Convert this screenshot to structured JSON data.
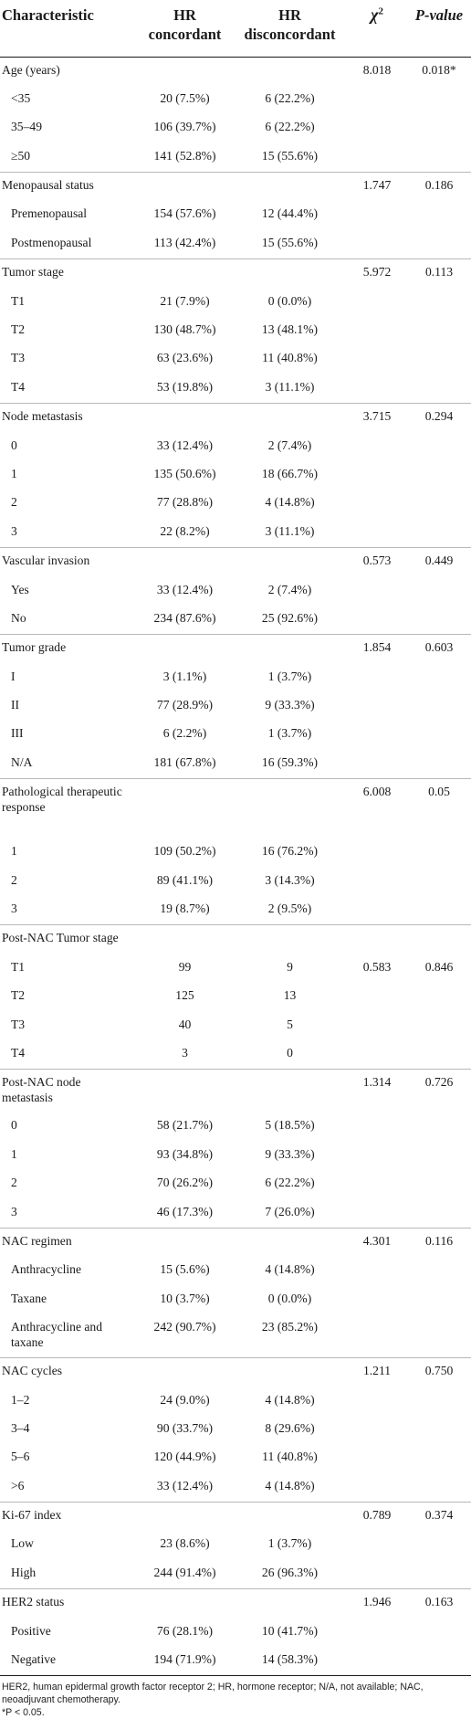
{
  "header": {
    "characteristic": "Characteristic",
    "hr_concordant": "HR concordant",
    "hr_disconcordant": "HR disconcordant",
    "chi_symbol": "χ",
    "chi_exp": "2",
    "p_value": "P-value"
  },
  "rows": [
    {
      "type": "group",
      "char": "Age (years)",
      "hrc": "",
      "hrd": "",
      "chi": "8.018",
      "p": "0.018*"
    },
    {
      "type": "sub",
      "char": "<35",
      "hrc": "20 (7.5%)",
      "hrd": "6 (22.2%)",
      "chi": "",
      "p": ""
    },
    {
      "type": "sub",
      "char": "35–49",
      "hrc": "106 (39.7%)",
      "hrd": "6 (22.2%)",
      "chi": "",
      "p": ""
    },
    {
      "type": "sub",
      "char": "≥50",
      "hrc": "141 (52.8%)",
      "hrd": "15 (55.6%)",
      "chi": "",
      "p": ""
    },
    {
      "type": "group",
      "char": "Menopausal status",
      "hrc": "",
      "hrd": "",
      "chi": "1.747",
      "p": "0.186"
    },
    {
      "type": "sub",
      "char": "Premenopausal",
      "hrc": "154 (57.6%)",
      "hrd": "12 (44.4%)",
      "chi": "",
      "p": ""
    },
    {
      "type": "sub",
      "char": "Postmenopausal",
      "hrc": "113 (42.4%)",
      "hrd": "15 (55.6%)",
      "chi": "",
      "p": ""
    },
    {
      "type": "group",
      "char": "Tumor stage",
      "hrc": "",
      "hrd": "",
      "chi": "5.972",
      "p": "0.113"
    },
    {
      "type": "sub",
      "char": "T1",
      "hrc": "21 (7.9%)",
      "hrd": "0 (0.0%)",
      "chi": "",
      "p": ""
    },
    {
      "type": "sub",
      "char": "T2",
      "hrc": "130 (48.7%)",
      "hrd": "13 (48.1%)",
      "chi": "",
      "p": ""
    },
    {
      "type": "sub",
      "char": "T3",
      "hrc": "63 (23.6%)",
      "hrd": "11 (40.8%)",
      "chi": "",
      "p": ""
    },
    {
      "type": "sub",
      "char": "T4",
      "hrc": "53 (19.8%)",
      "hrd": "3 (11.1%)",
      "chi": "",
      "p": ""
    },
    {
      "type": "group",
      "char": "Node metastasis",
      "hrc": "",
      "hrd": "",
      "chi": "3.715",
      "p": "0.294"
    },
    {
      "type": "sub",
      "char": "0",
      "hrc": "33 (12.4%)",
      "hrd": "2 (7.4%)",
      "chi": "",
      "p": ""
    },
    {
      "type": "sub",
      "char": "1",
      "hrc": "135 (50.6%)",
      "hrd": "18 (66.7%)",
      "chi": "",
      "p": ""
    },
    {
      "type": "sub",
      "char": "2",
      "hrc": "77 (28.8%)",
      "hrd": "4 (14.8%)",
      "chi": "",
      "p": ""
    },
    {
      "type": "sub",
      "char": "3",
      "hrc": "22 (8.2%)",
      "hrd": "3 (11.1%)",
      "chi": "",
      "p": ""
    },
    {
      "type": "group",
      "char": "Vascular invasion",
      "hrc": "",
      "hrd": "",
      "chi": "0.573",
      "p": "0.449"
    },
    {
      "type": "sub",
      "char": "Yes",
      "hrc": "33 (12.4%)",
      "hrd": "2 (7.4%)",
      "chi": "",
      "p": ""
    },
    {
      "type": "sub",
      "char": "No",
      "hrc": "234 (87.6%)",
      "hrd": "25 (92.6%)",
      "chi": "",
      "p": ""
    },
    {
      "type": "group",
      "char": "Tumor grade",
      "hrc": "",
      "hrd": "",
      "chi": "1.854",
      "p": "0.603"
    },
    {
      "type": "sub",
      "char": "I",
      "hrc": "3 (1.1%)",
      "hrd": "1 (3.7%)",
      "chi": "",
      "p": ""
    },
    {
      "type": "sub",
      "char": "II",
      "hrc": "77 (28.9%)",
      "hrd": "9 (33.3%)",
      "chi": "",
      "p": ""
    },
    {
      "type": "sub",
      "char": "III",
      "hrc": "6 (2.2%)",
      "hrd": "1 (3.7%)",
      "chi": "",
      "p": ""
    },
    {
      "type": "sub",
      "char": "N/A",
      "hrc": "181 (67.8%)",
      "hrd": "16 (59.3%)",
      "chi": "",
      "p": ""
    },
    {
      "type": "group",
      "tall": "tall3",
      "char": "Pathological therapeutic response",
      "hrc": "",
      "hrd": "",
      "chi": "6.008",
      "p": "0.05"
    },
    {
      "type": "sub",
      "char": "1",
      "hrc": "109 (50.2%)",
      "hrd": "16 (76.2%)",
      "chi": "",
      "p": ""
    },
    {
      "type": "sub",
      "char": "2",
      "hrc": "89 (41.1%)",
      "hrd": "3 (14.3%)",
      "chi": "",
      "p": ""
    },
    {
      "type": "sub",
      "char": "3",
      "hrc": "19 (8.7%)",
      "hrd": "2 (9.5%)",
      "chi": "",
      "p": ""
    },
    {
      "type": "group",
      "char": "Post-NAC Tumor stage",
      "hrc": "",
      "hrd": "",
      "chi": "",
      "p": ""
    },
    {
      "type": "sub",
      "char": "T1",
      "hrc": "99",
      "hrd": "9",
      "chi": "0.583",
      "p": "0.846"
    },
    {
      "type": "sub",
      "char": "T2",
      "hrc": "125",
      "hrd": "13",
      "chi": "",
      "p": ""
    },
    {
      "type": "sub",
      "char": "T3",
      "hrc": "40",
      "hrd": "5",
      "chi": "",
      "p": ""
    },
    {
      "type": "sub",
      "char": "T4",
      "hrc": "3",
      "hrd": "0",
      "chi": "",
      "p": ""
    },
    {
      "type": "group",
      "tall": "tall2",
      "char": "Post-NAC node metastasis",
      "hrc": "",
      "hrd": "",
      "chi": "1.314",
      "p": "0.726"
    },
    {
      "type": "sub",
      "char": "0",
      "hrc": "58 (21.7%)",
      "hrd": "5 (18.5%)",
      "chi": "",
      "p": ""
    },
    {
      "type": "sub",
      "char": "1",
      "hrc": "93 (34.8%)",
      "hrd": "9 (33.3%)",
      "chi": "",
      "p": ""
    },
    {
      "type": "sub",
      "char": "2",
      "hrc": "70 (26.2%)",
      "hrd": "6 (22.2%)",
      "chi": "",
      "p": ""
    },
    {
      "type": "sub",
      "char": "3",
      "hrc": "46 (17.3%)",
      "hrd": "7 (26.0%)",
      "chi": "",
      "p": ""
    },
    {
      "type": "group",
      "char": "NAC regimen",
      "hrc": "",
      "hrd": "",
      "chi": "4.301",
      "p": "0.116"
    },
    {
      "type": "sub",
      "char": "Anthracycline",
      "hrc": "15 (5.6%)",
      "hrd": "4 (14.8%)",
      "chi": "",
      "p": ""
    },
    {
      "type": "sub",
      "char": "Taxane",
      "hrc": "10 (3.7%)",
      "hrd": "0 (0.0%)",
      "chi": "",
      "p": ""
    },
    {
      "type": "sub",
      "tall": "tall2",
      "char": "Anthracycline and taxane",
      "hrc": "242 (90.7%)",
      "hrd": "23 (85.2%)",
      "chi": "",
      "p": ""
    },
    {
      "type": "group",
      "char": "NAC cycles",
      "hrc": "",
      "hrd": "",
      "chi": "1.211",
      "p": "0.750"
    },
    {
      "type": "sub",
      "char": "1–2",
      "hrc": "24 (9.0%)",
      "hrd": "4 (14.8%)",
      "chi": "",
      "p": ""
    },
    {
      "type": "sub",
      "char": "3–4",
      "hrc": "90 (33.7%)",
      "hrd": "8 (29.6%)",
      "chi": "",
      "p": ""
    },
    {
      "type": "sub",
      "char": "5–6",
      "hrc": "120 (44.9%)",
      "hrd": "11 (40.8%)",
      "chi": "",
      "p": ""
    },
    {
      "type": "sub",
      "char": ">6",
      "hrc": "33 (12.4%)",
      "hrd": "4 (14.8%)",
      "chi": "",
      "p": ""
    },
    {
      "type": "group",
      "char": "Ki-67 index",
      "hrc": "",
      "hrd": "",
      "chi": "0.789",
      "p": "0.374"
    },
    {
      "type": "sub",
      "char": "Low",
      "hrc": "23 (8.6%)",
      "hrd": "1 (3.7%)",
      "chi": "",
      "p": ""
    },
    {
      "type": "sub",
      "char": "High",
      "hrc": "244 (91.4%)",
      "hrd": "26 (96.3%)",
      "chi": "",
      "p": ""
    },
    {
      "type": "group",
      "char": "HER2 status",
      "hrc": "",
      "hrd": "",
      "chi": "1.946",
      "p": "0.163"
    },
    {
      "type": "sub",
      "char": "Positive",
      "hrc": "76 (28.1%)",
      "hrd": "10 (41.7%)",
      "chi": "",
      "p": ""
    },
    {
      "type": "sub",
      "char": "Negative",
      "hrc": "194 (71.9%)",
      "hrd": "14 (58.3%)",
      "chi": "",
      "p": ""
    }
  ],
  "footnote": {
    "abbreviations": "HER2, human epidermal growth factor receptor 2; HR, hormone receptor; N/A, not available; NAC, neoadjuvant chemotherapy.",
    "significance": "*P < 0.05."
  }
}
